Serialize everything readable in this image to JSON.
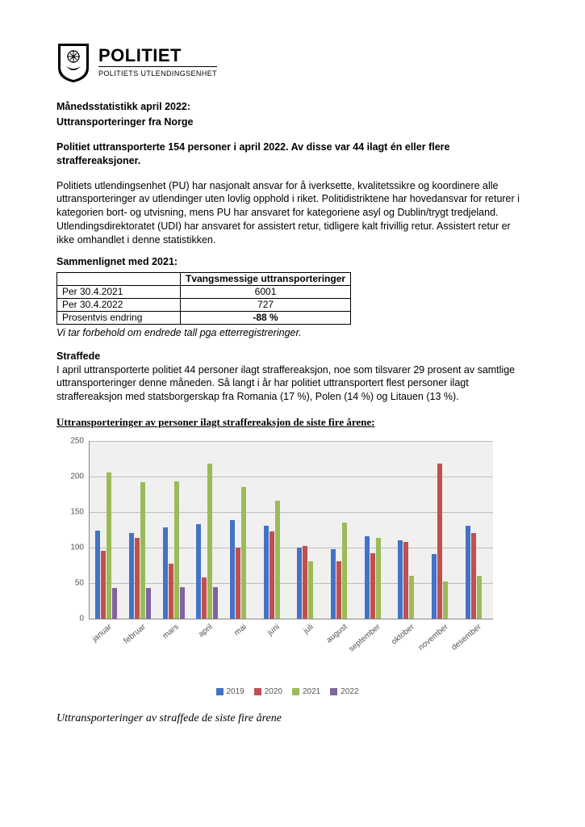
{
  "brand": {
    "title": "POLITIET",
    "subtitle": "POLITIETS UTLENDINGSENHET"
  },
  "header": {
    "line1": "Månedsstatistikk april 2022:",
    "line2": "Uttransporteringer fra Norge"
  },
  "lead": "Politiet uttransporterte 154 personer i april 2022. Av disse var 44 ilagt én eller flere straffereaksjoner.",
  "body1": "Politiets utlendingsenhet (PU) har nasjonalt ansvar for å iverksette, kvalitetssikre og koordinere alle uttransporteringer av utlendinger uten lovlig opphold i riket. Politidistriktene har hovedansvar for returer i kategorien bort- og utvisning, mens PU har ansvaret for kategoriene asyl og Dublin/trygt tredjeland. Utlendingsdirektoratet (UDI) har ansvaret for assistert retur, tidligere kalt frivillig retur. Assistert retur er ikke omhandlet i denne statistikken.",
  "compare": {
    "title": "Sammenlignet med 2021:",
    "col_label": "Tvangsmessige uttransporteringer",
    "rows": [
      {
        "label": "Per 30.4.2021",
        "value": "6001"
      },
      {
        "label": "Per 30.4.2022",
        "value": "727"
      },
      {
        "label": "Prosentvis endring",
        "value": "-88 %"
      }
    ],
    "footnote": "Vi tar forbehold om endrede tall pga etterregistreringer."
  },
  "convicted": {
    "title": "Straffede",
    "text": "I april uttransporterte politiet 44 personer ilagt straffereaksjon, noe som tilsvarer 29 prosent av samtlige uttransporteringer denne måneden. Så langt i år har politiet uttransportert flest personer ilagt straffereaksjon med statsborgerskap fra Romania (17 %), Polen (14 %) og Litauen (13 %)."
  },
  "chart": {
    "title": "Uttransporteringer av personer ilagt straffereaksjon de siste fire årene:",
    "type": "bar",
    "ylim": [
      0,
      250
    ],
    "ytick_step": 50,
    "background_color": "#f0f0f0",
    "grid_color": "#bdbdbd",
    "label_fontsize": 10,
    "categories": [
      "januar",
      "februar",
      "mars",
      "april",
      "mai",
      "juni",
      "juli",
      "august",
      "september",
      "oktober",
      "november",
      "desember"
    ],
    "series": [
      {
        "name": "2019",
        "color": "#4472c4",
        "values": [
          123,
          120,
          128,
          133,
          138,
          130,
          100,
          97,
          115,
          110,
          90,
          130
        ]
      },
      {
        "name": "2020",
        "color": "#c0504d",
        "values": [
          95,
          113,
          77,
          58,
          100,
          122,
          102,
          80,
          92,
          108,
          218,
          120
        ]
      },
      {
        "name": "2021",
        "color": "#9bbb59",
        "values": [
          205,
          192,
          193,
          218,
          185,
          165,
          80,
          135,
          113,
          60,
          52,
          60
        ]
      },
      {
        "name": "2022",
        "color": "#8064a2",
        "values": [
          43,
          43,
          44,
          44,
          null,
          null,
          null,
          null,
          null,
          null,
          null,
          null
        ]
      }
    ]
  },
  "caption": "Uttransporteringer av straffede de siste fire årene"
}
